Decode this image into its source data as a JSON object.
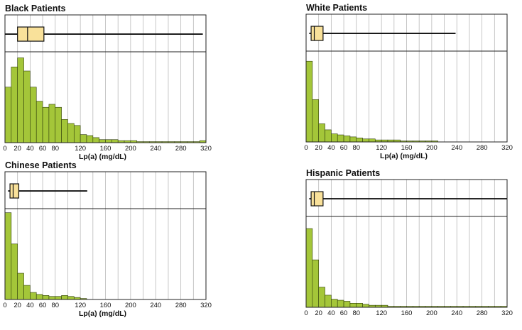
{
  "chart_data": [
    {
      "type": "histogram",
      "title": "Black Patients",
      "xlabel": "Lp(a) (mg/dL)",
      "xlim": [
        0,
        320
      ],
      "xticks": [
        0,
        20,
        40,
        60,
        80,
        120,
        160,
        200,
        240,
        280,
        320
      ],
      "bin_width": 10,
      "bin_counts": [
        55,
        75,
        84,
        71,
        55,
        41,
        35,
        38,
        35,
        23,
        19,
        17,
        8,
        7,
        5,
        3,
        3,
        3,
        2,
        2,
        2,
        1,
        1,
        1,
        1,
        1,
        1,
        1,
        1,
        1,
        1,
        2
      ],
      "ymax": 90,
      "boxplot": {
        "whisker_low": 0,
        "q1": 20,
        "median": 36,
        "q3": 62,
        "whisker_high": 315
      }
    },
    {
      "type": "histogram",
      "title": "White Patients",
      "xlabel": "Lp(a) (mg/dL)",
      "xlim": [
        0,
        320
      ],
      "xticks": [
        0,
        20,
        40,
        60,
        80,
        120,
        160,
        200,
        240,
        280,
        320
      ],
      "bin_width": 10,
      "bin_counts": [
        80,
        42,
        18,
        12,
        8,
        7,
        6,
        5,
        4,
        3,
        3,
        2,
        2,
        2,
        2,
        1,
        1,
        1,
        1,
        1,
        1,
        0,
        0,
        0,
        0,
        0,
        0,
        0,
        0,
        0,
        0,
        0
      ],
      "ymax": 90,
      "boxplot": {
        "whisker_low": 5,
        "q1": 8,
        "median": 13,
        "q3": 27,
        "whisker_high": 238
      }
    },
    {
      "type": "histogram",
      "title": "Chinese Patients",
      "xlabel": "Lp(a) (mg/dL)",
      "xlim": [
        0,
        320
      ],
      "xticks": [
        0,
        20,
        40,
        60,
        80,
        120,
        160,
        200,
        240,
        280,
        320
      ],
      "bin_width": 10,
      "bin_counts": [
        86,
        55,
        26,
        14,
        7,
        5,
        4,
        3,
        3,
        4,
        3,
        2,
        1,
        0,
        0,
        0,
        0,
        0,
        0,
        0,
        0,
        0,
        0,
        0,
        0,
        0,
        0,
        0,
        0,
        0,
        0,
        0
      ],
      "ymax": 90,
      "boxplot": {
        "whisker_low": 5,
        "q1": 8,
        "median": 13,
        "q3": 22,
        "whisker_high": 131
      }
    },
    {
      "type": "histogram",
      "title": "Hispanic Patients",
      "xlabel": "",
      "xlim": [
        0,
        320
      ],
      "xticks": [
        0,
        20,
        40,
        60,
        80,
        120,
        160,
        200,
        240,
        280,
        320
      ],
      "bin_width": 10,
      "bin_counts": [
        78,
        47,
        20,
        12,
        8,
        7,
        6,
        4,
        4,
        3,
        2,
        2,
        2,
        1,
        1,
        1,
        1,
        1,
        1,
        1,
        1,
        1,
        1,
        1,
        1,
        1,
        1,
        1,
        1,
        1,
        1,
        1
      ],
      "ymax": 90,
      "boxplot": {
        "whisker_low": 5,
        "q1": 8,
        "median": 13,
        "q3": 27,
        "whisker_high": 320
      }
    }
  ],
  "colors": {
    "bar_fill": "#a4c639",
    "bar_stroke": "#2f3d0a",
    "box_fill": "#f9e19a",
    "grid": "#b8b8b8",
    "frame": "#222222"
  }
}
